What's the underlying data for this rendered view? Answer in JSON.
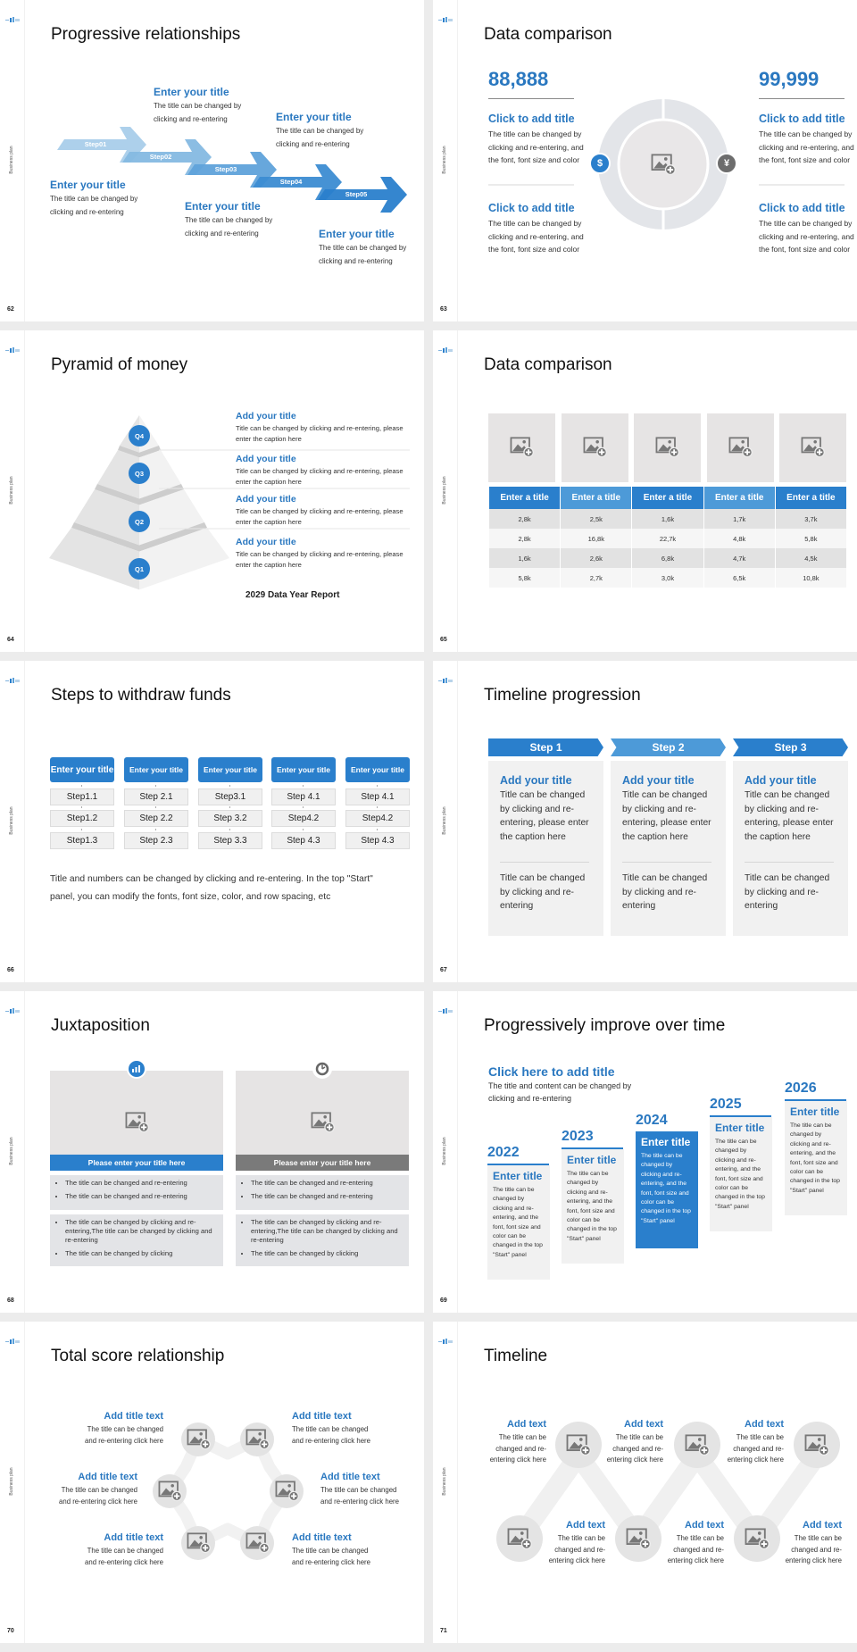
{
  "deck": {
    "sidebar_label": "Business plan"
  },
  "colors": {
    "accent": "#2a7fcc",
    "accent_light": "#4d9ad8",
    "title_blue": "#2a78c0",
    "gray_panel": "#f1f1f1",
    "dark_gray": "#7a7a7a",
    "step_arrows": [
      "#a9cdea",
      "#85b9e2",
      "#5fa2da",
      "#3c8cd2",
      "#2a7fcc"
    ]
  },
  "slides": [
    {
      "page": "62",
      "title": "Progressive relationships",
      "steps": [
        "Step01",
        "Step02",
        "Step03",
        "Step04",
        "Step05"
      ],
      "blocks": [
        {
          "title": "Enter your title",
          "body": [
            "The title can be changed by",
            "clicking and re-entering"
          ]
        },
        {
          "title": "Enter your title",
          "body": [
            "The title can be changed by",
            "clicking and re-entering"
          ]
        },
        {
          "title": "Enter your title",
          "body": [
            "The title can be changed by",
            "clicking and re-entering"
          ]
        },
        {
          "title": "Enter your title",
          "body": [
            "The title can be changed by",
            "clicking and re-entering"
          ]
        },
        {
          "title": "Enter your title",
          "body": [
            "The title can be changed by",
            "clicking and re-entering"
          ]
        }
      ]
    },
    {
      "page": "63",
      "title": "Data comparison",
      "sides": [
        {
          "value": "88,888",
          "icon": "hand-money-icon",
          "items": [
            {
              "title": "Click to add title",
              "body": [
                "The title can be changed by",
                "clicking and re-entering, and",
                "the font, font size and color"
              ]
            },
            {
              "title": "Click to add title",
              "body": [
                "The title can be changed by",
                "clicking and re-entering, and",
                "the font, font size and color"
              ]
            }
          ]
        },
        {
          "value": "99,999",
          "icon": "money-bag-icon",
          "items": [
            {
              "title": "Click to add title",
              "body": [
                "The title can be changed by",
                "clicking and re-entering, and",
                "the font, font size and color"
              ]
            },
            {
              "title": "Click to add title",
              "body": [
                "The title can be changed by",
                "clicking and re-entering, and",
                "the font, font size and color"
              ]
            }
          ]
        }
      ]
    },
    {
      "page": "64",
      "title": "Pyramid of money",
      "levels": [
        "Q4",
        "Q3",
        "Q2",
        "Q1"
      ],
      "items": [
        {
          "title": "Add your title",
          "body": [
            "Title can be changed by clicking and re-entering, please",
            "enter the caption here"
          ]
        },
        {
          "title": "Add your title",
          "body": [
            "Title can be changed by clicking and re-entering, please",
            "enter the caption here"
          ]
        },
        {
          "title": "Add your title",
          "body": [
            "Title can be changed by clicking and re-entering, please",
            "enter the caption here"
          ]
        },
        {
          "title": "Add your title",
          "body": [
            "Title can be changed by clicking and re-entering, please",
            "enter the caption here"
          ]
        }
      ],
      "footer": "2029 Data Year Report"
    },
    {
      "page": "65",
      "title": "Data comparison",
      "headers": [
        "Enter a title",
        "Enter a title",
        "Enter a title",
        "Enter a title",
        "Enter a title"
      ],
      "rows": [
        [
          "2,8k",
          "2,5k",
          "1,6k",
          "1,7k",
          "3,7k"
        ],
        [
          "2,8k",
          "16,8k",
          "22,7k",
          "4,8k",
          "5,8k"
        ],
        [
          "1,6k",
          "2,6k",
          "6,8k",
          "4,7k",
          "4,5k"
        ],
        [
          "5,8k",
          "2,7k",
          "3,0k",
          "6,5k",
          "10,8k"
        ]
      ]
    },
    {
      "page": "66",
      "title": "Steps to withdraw funds",
      "columns": [
        {
          "header": "Enter your title",
          "steps": [
            "Step1.1",
            "Step1.2",
            "Step1.3"
          ]
        },
        {
          "header": "Enter your title",
          "steps": [
            "Step 2.1",
            "Step 2.2",
            "Step 2.3"
          ]
        },
        {
          "header": "Enter your title",
          "steps": [
            "Step3.1",
            "Step 3.2",
            "Step 3.3"
          ]
        },
        {
          "header": "Enter your title",
          "steps": [
            "Step 4.1",
            "Step4.2",
            "Step 4.3"
          ]
        },
        {
          "header": "Enter your title",
          "steps": [
            "Step 4.1",
            "Step4.2",
            "Step 4.3"
          ]
        }
      ],
      "note": [
        "Title and numbers can be changed by clicking and re-entering. In the top \"Start\"",
        "panel, you can modify the fonts, font size, color, and row spacing, etc"
      ]
    },
    {
      "page": "67",
      "title": "Timeline progression",
      "steps": [
        {
          "label": "Step 1",
          "title": "Add your title",
          "body": [
            "Title can be changed",
            "by clicking and re-",
            "entering, please enter",
            "the caption here"
          ],
          "note": [
            "Title can be changed",
            "by clicking and re-",
            "entering"
          ]
        },
        {
          "label": "Step 2",
          "title": "Add your title",
          "body": [
            "Title can be changed",
            "by clicking and re-",
            "entering, please enter",
            "the caption here"
          ],
          "note": [
            "Title can be changed",
            "by clicking and re-",
            "entering"
          ]
        },
        {
          "label": "Step 3",
          "title": "Add your title",
          "body": [
            "Title can be changed",
            "by clicking and re-",
            "entering, please enter",
            "the caption here"
          ],
          "note": [
            "Title can be changed",
            "by clicking and re-",
            "entering"
          ]
        }
      ]
    },
    {
      "page": "68",
      "title": "Juxtaposition",
      "panels": [
        {
          "icon": "bar-chart-icon",
          "banner": "Please enter your title here",
          "bullets_top": [
            "The title can be changed and re-entering",
            "The title can be changed and re-entering"
          ],
          "bullets_bottom": [
            "The title can be changed by clicking and re-entering,The title can be changed by clicking and re-entering",
            "The title can be changed by clicking"
          ]
        },
        {
          "icon": "clock-icon",
          "banner": "Please enter your title here",
          "bullets_top": [
            "The title can be changed and re-entering",
            "The title can be changed and re-entering"
          ],
          "bullets_bottom": [
            "The title can be changed by clicking and re-entering,The title can be changed by clicking and re-entering",
            "The title can be changed by clicking"
          ]
        }
      ]
    },
    {
      "page": "69",
      "title": "Progressively improve over time",
      "heading": "Click here to add title",
      "intro": [
        "The title and content can be changed by",
        "clicking and re-entering"
      ],
      "columns": [
        {
          "year": "2022",
          "title": "Enter title",
          "highlight": false,
          "body": [
            "The title can be",
            "changed by",
            "clicking and re-",
            "entering, and the",
            "font, font size and",
            "color can be",
            "changed in the top",
            "\"Start\" panel"
          ]
        },
        {
          "year": "2023",
          "title": "Enter title",
          "highlight": false,
          "body": [
            "The title can be",
            "changed by",
            "clicking and re-",
            "entering, and the",
            "font, font size and",
            "color can be",
            "changed in the top",
            "\"Start\" panel"
          ]
        },
        {
          "year": "2024",
          "title": "Enter title",
          "highlight": true,
          "body": [
            "The title can be",
            "changed by",
            "clicking and re-",
            "entering, and the",
            "font, font size and",
            "color can be",
            "changed in the top",
            "\"Start\" panel"
          ]
        },
        {
          "year": "2025",
          "title": "Enter title",
          "highlight": false,
          "body": [
            "The title can be",
            "changed by",
            "clicking and re-",
            "entering, and the",
            "font, font size and",
            "color can be",
            "changed in the top",
            "\"Start\" panel"
          ]
        },
        {
          "year": "2026",
          "title": "Enter title",
          "highlight": false,
          "body": [
            "The title can be",
            "changed by",
            "clicking and re-",
            "entering, and the",
            "font, font size and",
            "color can be",
            "changed in the top",
            "\"Start\" panel"
          ]
        }
      ]
    },
    {
      "page": "70",
      "title": "Total score relationship",
      "items": [
        {
          "title": "Add title text",
          "body": [
            "The title can be changed",
            "and re-entering click here"
          ]
        },
        {
          "title": "Add title text",
          "body": [
            "The title can be changed",
            "and re-entering click here"
          ]
        },
        {
          "title": "Add title text",
          "body": [
            "The title can be changed",
            "and re-entering click here"
          ]
        },
        {
          "title": "Add title text",
          "body": [
            "The title can be changed",
            "and re-entering click here"
          ]
        },
        {
          "title": "Add title text",
          "body": [
            "The title can be changed",
            "and re-entering click here"
          ]
        },
        {
          "title": "Add title text",
          "body": [
            "The title can be changed",
            "and re-entering click here"
          ]
        }
      ]
    },
    {
      "page": "71",
      "title": "Timeline",
      "items": [
        {
          "title": "Add text",
          "body": [
            "The title can be",
            "changed and re-",
            "entering click here"
          ]
        },
        {
          "title": "Add text",
          "body": [
            "The title can be",
            "changed and re-",
            "entering click here"
          ]
        },
        {
          "title": "Add text",
          "body": [
            "The title can be",
            "changed and re-",
            "entering click here"
          ]
        },
        {
          "title": "Add text",
          "body": [
            "The title can be",
            "changed and re-",
            "entering click here"
          ]
        },
        {
          "title": "Add text",
          "body": [
            "The title can be",
            "changed and re-",
            "entering click here"
          ]
        },
        {
          "title": "Add text",
          "body": [
            "The title can be",
            "changed and re-",
            "entering click here"
          ]
        }
      ]
    }
  ]
}
